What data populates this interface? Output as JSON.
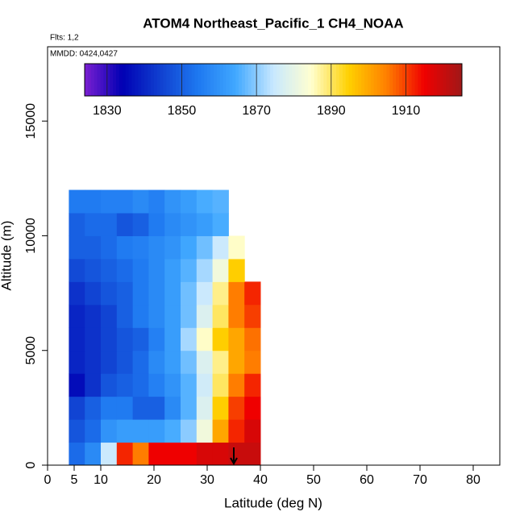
{
  "chart_data": {
    "type": "curtain",
    "title": "ATOM4 Northeast_Pacific_1 CH4_NOAA",
    "subtitle": "Flts: 1,2",
    "annotation": "MMDD: 0424,0427",
    "x_label": "Latitude (deg N)",
    "y_label": "Altitude (m)",
    "xlim": [
      0,
      85
    ],
    "ylim": [
      0,
      18240
    ],
    "xticks": [
      0,
      5,
      10,
      20,
      30,
      40,
      50,
      60,
      70,
      80
    ],
    "yticks": [
      0,
      5000,
      10000,
      15000
    ],
    "xbins": [
      4,
      7,
      10,
      13,
      16,
      19,
      22,
      25,
      28,
      31,
      34,
      37,
      40
    ],
    "ybins": [
      0,
      1000,
      2000,
      3000,
      4000,
      5000,
      6000,
      7000,
      8000,
      9000,
      10000,
      11000,
      12000
    ],
    "values": [
      [
        1852,
        1858,
        1875,
        1912,
        1905,
        1915,
        1915,
        1915,
        1918,
        1918,
        1920,
        1920
      ],
      [
        1848,
        1852,
        1860,
        1862,
        1862,
        1862,
        1865,
        1870,
        1882,
        1900,
        1912,
        1918
      ],
      [
        1845,
        1850,
        1855,
        1855,
        1850,
        1850,
        1858,
        1866,
        1878,
        1895,
        1910,
        1915
      ],
      [
        1836,
        1842,
        1848,
        1850,
        1852,
        1856,
        1860,
        1866,
        1876,
        1890,
        1905,
        1912
      ],
      [
        1840,
        1842,
        1845,
        1848,
        1852,
        1858,
        1862,
        1868,
        1878,
        1888,
        1900,
        1905
      ],
      [
        1840,
        1842,
        1845,
        1848,
        1850,
        1856,
        1862,
        1872,
        1885,
        1895,
        1900,
        1906
      ],
      [
        1840,
        1842,
        1845,
        1850,
        1855,
        1858,
        1862,
        1868,
        1878,
        1890,
        1905,
        1910
      ],
      [
        1842,
        1845,
        1848,
        1850,
        1855,
        1858,
        1862,
        1868,
        1875,
        1888,
        1905,
        1912
      ],
      [
        1846,
        1848,
        1850,
        1852,
        1855,
        1858,
        1862,
        1866,
        1872,
        1882,
        1895,
        null
      ],
      [
        1850,
        1850,
        1852,
        1855,
        1856,
        1858,
        1860,
        1864,
        1868,
        1875,
        1885,
        null
      ],
      [
        1850,
        1852,
        1852,
        1848,
        1850,
        1855,
        1858,
        1860,
        1862,
        1865,
        null,
        null
      ],
      [
        1855,
        1855,
        1856,
        1856,
        1858,
        1856,
        1860,
        1862,
        1865,
        1866,
        null,
        null
      ]
    ],
    "clim": [
      1824,
      1925
    ],
    "cticks": [
      1830,
      1850,
      1870,
      1890,
      1910
    ],
    "colorscale": [
      "#7b1fd1",
      "#0000b4",
      "#1040d0",
      "#1e78f0",
      "#40a8ff",
      "#c8e8ff",
      "#ffffd0",
      "#ffd000",
      "#ff8000",
      "#f00000",
      "#a01818"
    ],
    "arrow_x": 35
  }
}
